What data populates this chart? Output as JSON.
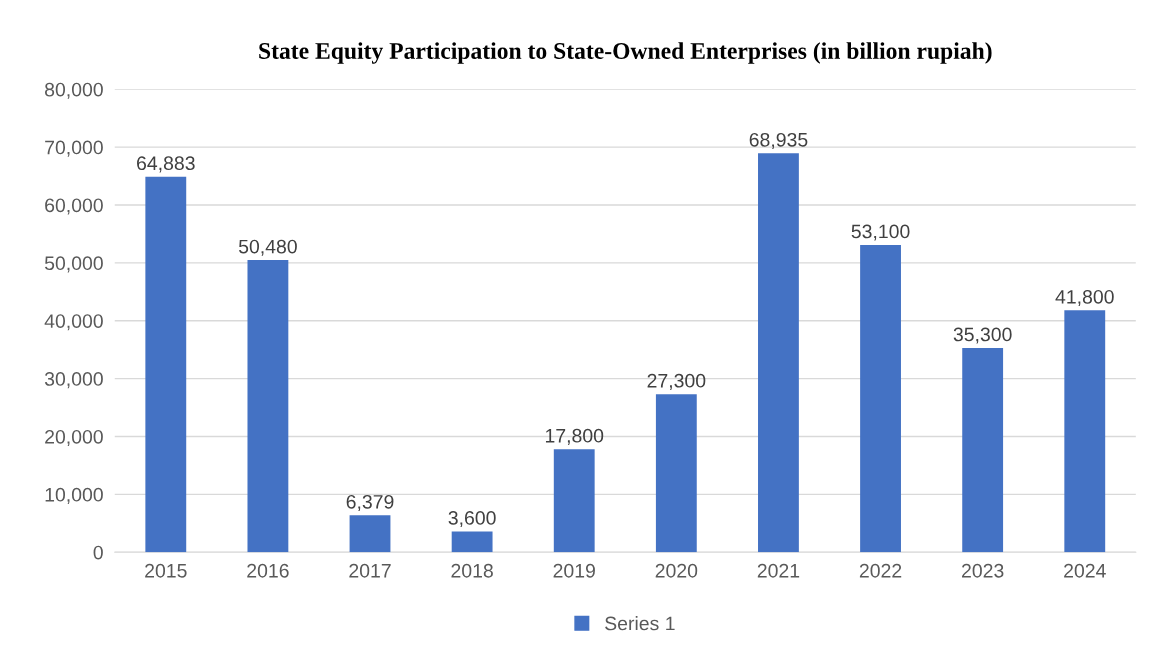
{
  "chart_data": {
    "type": "bar",
    "title": "State Equity Participation to State-Owned Enterprises (in billion rupiah)",
    "categories": [
      "2015",
      "2016",
      "2017",
      "2018",
      "2019",
      "2020",
      "2021",
      "2022",
      "2023",
      "2024"
    ],
    "series": [
      {
        "name": "Series 1",
        "color": "#4472c4",
        "values": [
          64883,
          50480,
          6379,
          3600,
          17800,
          27300,
          68935,
          53100,
          35300,
          41800
        ],
        "value_labels": [
          "64,883",
          "50,480",
          "6,379",
          "3,600",
          "17,800",
          "27,300",
          "68,935",
          "53,100",
          "35,300",
          "41,800"
        ]
      }
    ],
    "ylim": [
      0,
      80000
    ],
    "yticks": [
      {
        "value": 0,
        "label": "0"
      },
      {
        "value": 10000,
        "label": "10,000"
      },
      {
        "value": 20000,
        "label": "20,000"
      },
      {
        "value": 30000,
        "label": "30,000"
      },
      {
        "value": 40000,
        "label": "40,000"
      },
      {
        "value": 50000,
        "label": "50,000"
      },
      {
        "value": 60000,
        "label": "60,000"
      },
      {
        "value": 70000,
        "label": "70,000"
      },
      {
        "value": 80000,
        "label": "80,000"
      }
    ],
    "grid": "y",
    "legend": "bottom"
  }
}
